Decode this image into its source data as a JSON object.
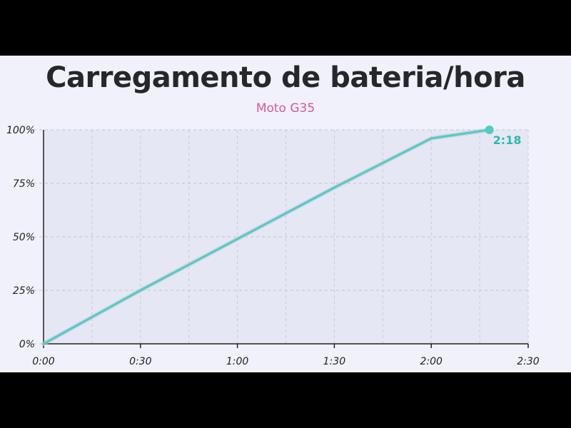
{
  "chart_data": {
    "type": "line",
    "title": "Carregamento de bateria/hora",
    "subtitle": "Moto G35",
    "xlabel": "",
    "ylabel": "",
    "x_ticks": [
      "0:00",
      "0:30",
      "1:00",
      "1:30",
      "2:00",
      "2:30"
    ],
    "y_ticks": [
      "0%",
      "25%",
      "50%",
      "75%",
      "100%"
    ],
    "xlim": [
      0,
      150
    ],
    "ylim": [
      0,
      100
    ],
    "grid": true,
    "series": [
      {
        "x": [
          0,
          30,
          60,
          90,
          120,
          138
        ],
        "y": [
          0,
          25,
          49,
          73,
          96,
          100
        ],
        "color": "#4fcdc0"
      }
    ],
    "end_label": "2:18"
  }
}
